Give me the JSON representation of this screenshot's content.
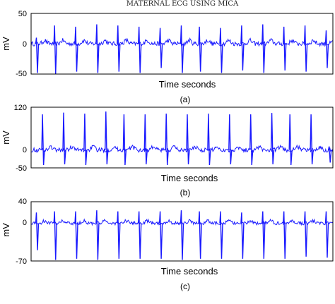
{
  "figure_title": "MATERNAL ECG USING MICA",
  "colors": {
    "trace": "#1a1aff",
    "frame": "#000000"
  },
  "chart_data": [
    {
      "type": "line",
      "caption": "(a)",
      "title": "MATERNAL ECG USING MICA",
      "xlabel": "Time seconds",
      "ylabel": "mV",
      "yticks": [
        "50",
        "0",
        "-50"
      ],
      "ylim": [
        -50,
        50
      ],
      "baseline": 0,
      "grid": false,
      "series": [
        {
          "beats": [
            {
              "x": 0.02,
              "min": -48,
              "max": 10
            },
            {
              "x": 0.08,
              "min": -50,
              "max": 30
            },
            {
              "x": 0.15,
              "min": -46,
              "max": 28
            },
            {
              "x": 0.22,
              "min": -48,
              "max": 32
            },
            {
              "x": 0.29,
              "min": -46,
              "max": 30
            },
            {
              "x": 0.36,
              "min": -48,
              "max": 28
            },
            {
              "x": 0.43,
              "min": -40,
              "max": 26
            },
            {
              "x": 0.5,
              "min": -48,
              "max": 30
            },
            {
              "x": 0.56,
              "min": -46,
              "max": 28
            },
            {
              "x": 0.63,
              "min": -48,
              "max": 26
            },
            {
              "x": 0.7,
              "min": -44,
              "max": 30
            },
            {
              "x": 0.77,
              "min": -48,
              "max": 32
            },
            {
              "x": 0.84,
              "min": -44,
              "max": 28
            },
            {
              "x": 0.91,
              "min": -46,
              "max": 30
            },
            {
              "x": 0.98,
              "min": -40,
              "max": 22
            }
          ],
          "noise_amplitude": 6
        }
      ]
    },
    {
      "type": "line",
      "caption": "(b)",
      "xlabel": "Time seconds",
      "ylabel": "mV",
      "yticks": [
        "120",
        "0",
        "-50"
      ],
      "ylim": [
        -50,
        120
      ],
      "baseline": 0,
      "grid": false,
      "series": [
        {
          "beats": [
            {
              "x": 0.04,
              "min": -42,
              "max": 100
            },
            {
              "x": 0.11,
              "min": -40,
              "max": 105
            },
            {
              "x": 0.18,
              "min": -42,
              "max": 102
            },
            {
              "x": 0.25,
              "min": -40,
              "max": 108
            },
            {
              "x": 0.31,
              "min": -42,
              "max": 100
            },
            {
              "x": 0.38,
              "min": -40,
              "max": 100
            },
            {
              "x": 0.45,
              "min": -42,
              "max": 102
            },
            {
              "x": 0.52,
              "min": -40,
              "max": 100
            },
            {
              "x": 0.59,
              "min": -42,
              "max": 102
            },
            {
              "x": 0.66,
              "min": -40,
              "max": 100
            },
            {
              "x": 0.73,
              "min": -42,
              "max": 100
            },
            {
              "x": 0.8,
              "min": -40,
              "max": 104
            },
            {
              "x": 0.86,
              "min": -42,
              "max": 100
            },
            {
              "x": 0.93,
              "min": -40,
              "max": 100
            },
            {
              "x": 0.99,
              "min": -35,
              "max": 10
            }
          ],
          "noise_amplitude": 10
        }
      ]
    },
    {
      "type": "line",
      "caption": "(c)",
      "xlabel": "Time seconds",
      "ylabel": "mV",
      "yticks": [
        "40",
        "0",
        "-70"
      ],
      "ylim": [
        -70,
        40
      ],
      "baseline": 0,
      "grid": false,
      "series": [
        {
          "beats": [
            {
              "x": 0.02,
              "min": -50,
              "max": 20
            },
            {
              "x": 0.08,
              "min": -68,
              "max": 22
            },
            {
              "x": 0.15,
              "min": -66,
              "max": 22
            },
            {
              "x": 0.22,
              "min": -68,
              "max": 24
            },
            {
              "x": 0.29,
              "min": -66,
              "max": 22
            },
            {
              "x": 0.36,
              "min": -66,
              "max": 22
            },
            {
              "x": 0.43,
              "min": -66,
              "max": 22
            },
            {
              "x": 0.5,
              "min": -68,
              "max": 24
            },
            {
              "x": 0.56,
              "min": -66,
              "max": 22
            },
            {
              "x": 0.63,
              "min": -66,
              "max": 22
            },
            {
              "x": 0.7,
              "min": -66,
              "max": 20
            },
            {
              "x": 0.77,
              "min": -66,
              "max": 22
            },
            {
              "x": 0.84,
              "min": -66,
              "max": 22
            },
            {
              "x": 0.91,
              "min": -62,
              "max": 22
            },
            {
              "x": 0.98,
              "min": -64,
              "max": 22
            }
          ],
          "noise_amplitude": 5
        }
      ]
    }
  ]
}
